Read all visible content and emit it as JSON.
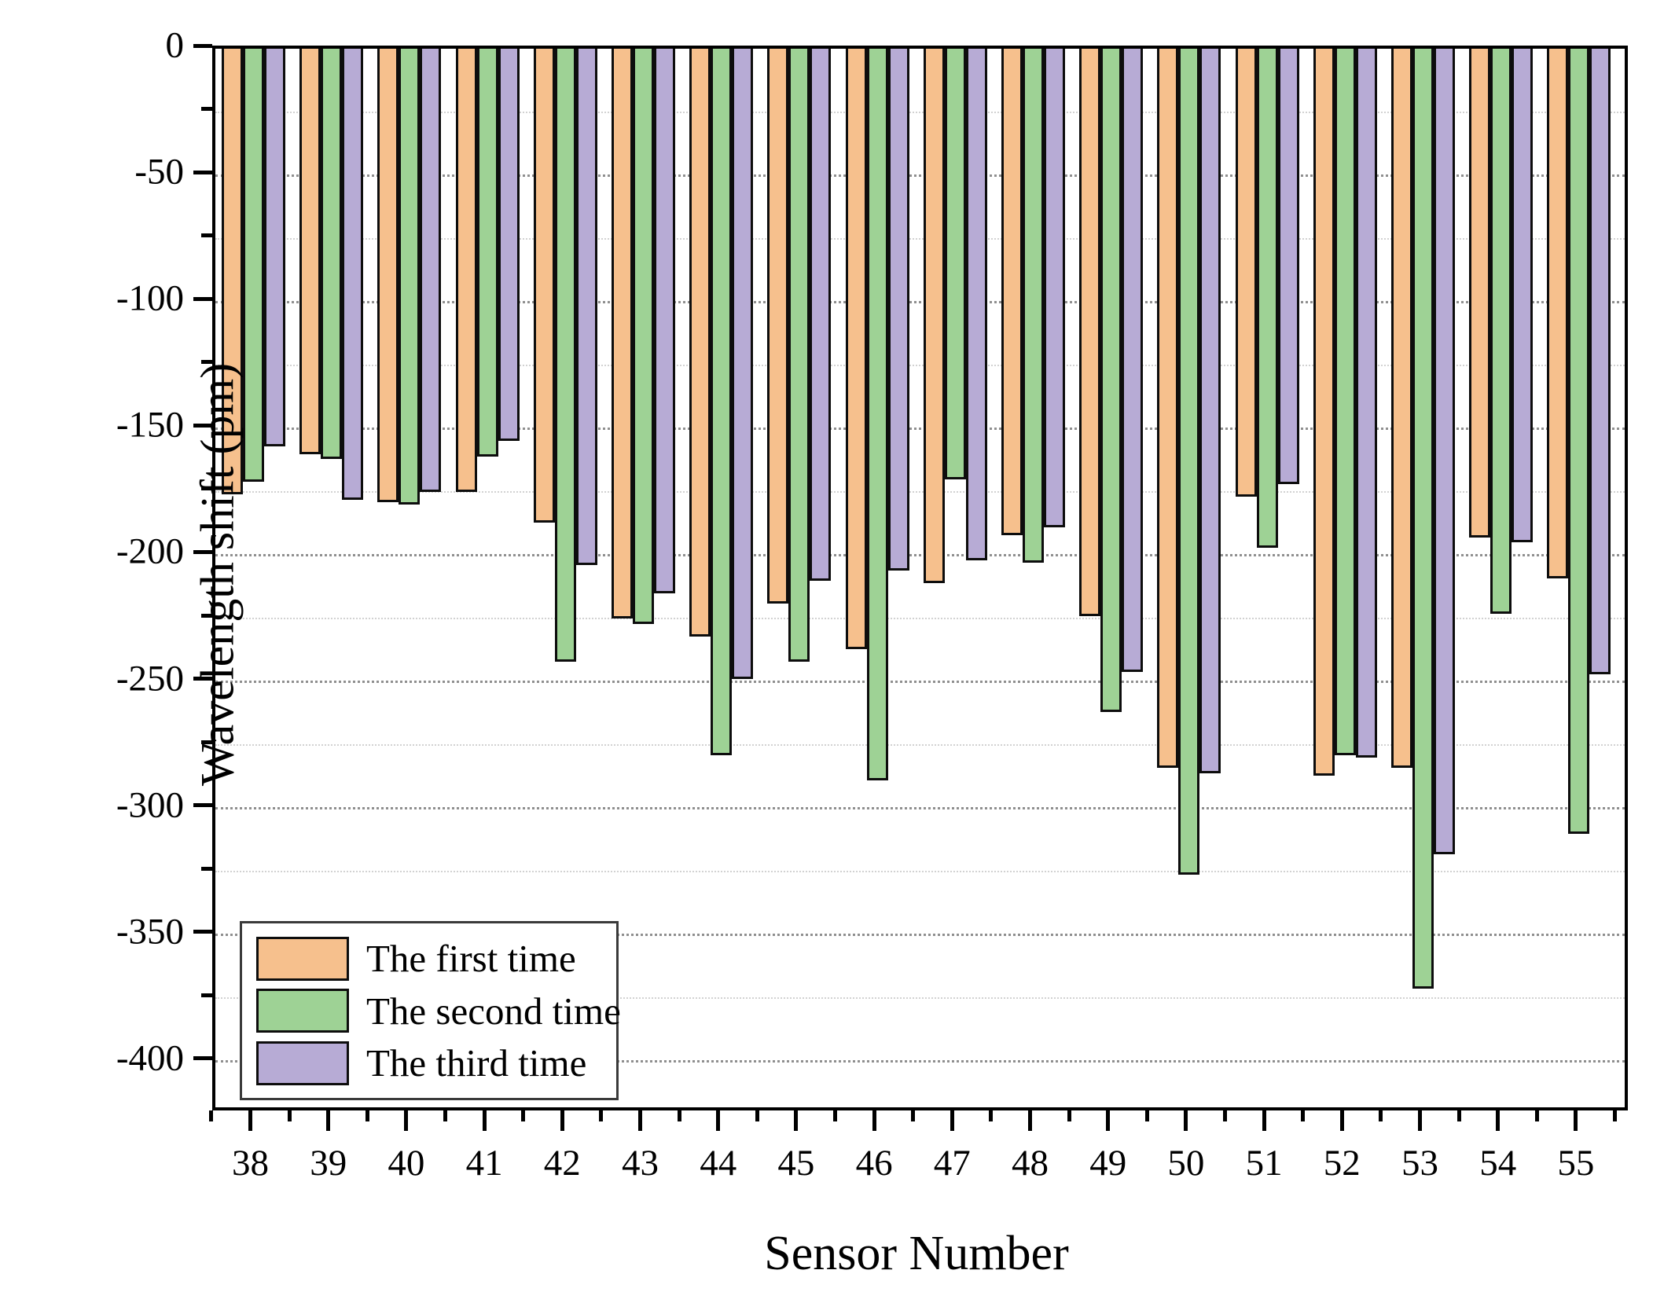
{
  "axes": {
    "y_label": "Wavelength shift (pm)",
    "x_label": "Sensor Number",
    "y_tick_labels": [
      "0",
      "-50",
      "-100",
      "-150",
      "-200",
      "-250",
      "-300",
      "-350",
      "-400"
    ],
    "y_tick_values": [
      0,
      -50,
      -100,
      -150,
      -200,
      -250,
      -300,
      -350,
      -400
    ],
    "y_minor_tick_values": [
      -25,
      -75,
      -125,
      -175,
      -225,
      -275,
      -325,
      -375
    ],
    "ylim": [
      -418,
      0
    ]
  },
  "legend": {
    "items": [
      {
        "label": "The first time",
        "color": "#f6c08d"
      },
      {
        "label": "The second time",
        "color": "#9ed295"
      },
      {
        "label": "The third time",
        "color": "#b7abd5"
      }
    ]
  },
  "colors": {
    "first": "#f6c08d",
    "second": "#9ed295",
    "third": "#b7abd5",
    "bar_outline": "#0d0d0d",
    "grid_major": "#8f8f8f",
    "grid_minor": "#d2d2d2"
  },
  "chart_data": {
    "type": "bar",
    "title": "",
    "xlabel": "Sensor Number",
    "ylabel": "Wavelength shift (pm)",
    "ylim": [
      -418,
      0
    ],
    "grid": "dotted horizontal at every 50 pm",
    "legend_position": "lower-left inside plot",
    "categories": [
      38,
      39,
      40,
      41,
      42,
      43,
      44,
      45,
      46,
      47,
      48,
      49,
      50,
      51,
      52,
      53,
      54,
      55
    ],
    "series": [
      {
        "name": "The first time",
        "values": [
          -176,
          -160,
          -179,
          -175,
          -187,
          -225,
          -232,
          -219,
          -237,
          -211,
          -192,
          -224,
          -284,
          -177,
          -287,
          -284,
          -193,
          -209
        ]
      },
      {
        "name": "The second time",
        "values": [
          -171,
          -162,
          -180,
          -161,
          -242,
          -227,
          -279,
          -242,
          -289,
          -170,
          -203,
          -262,
          -326,
          -197,
          -279,
          -371,
          -223,
          -310
        ]
      },
      {
        "name": "The third time",
        "values": [
          -157,
          -178,
          -175,
          -155,
          -204,
          -215,
          -249,
          -210,
          -206,
          -202,
          -189,
          -246,
          -286,
          -172,
          -280,
          -318,
          -195,
          -247
        ]
      }
    ]
  }
}
